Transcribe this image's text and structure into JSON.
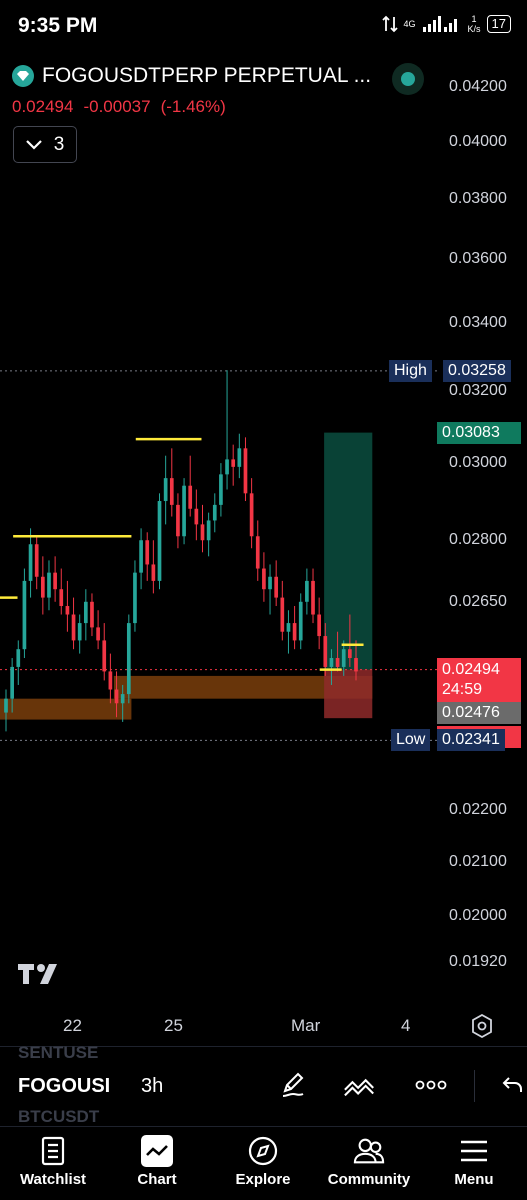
{
  "status": {
    "time": "9:35 PM",
    "network": "4G",
    "speed_value": "1",
    "speed_unit": "K/s",
    "battery": "17"
  },
  "header": {
    "symbol": "FOGOUSDTPERP PERPETUAL ...",
    "last_price": "0.02494",
    "change": "-0.00037",
    "change_pct": "(-1.46%)",
    "collapsed_count": "3"
  },
  "colors": {
    "bull": "#26a69a",
    "bear": "#f23645",
    "level_line": "#ffeb3b",
    "demand_zone": "#7a3e0c",
    "target_zone": "#0b4d3f",
    "stop_zone": "#8f2a2a",
    "high_low_tag": "#1a2f5a",
    "brand": "#26a69a"
  },
  "chart_data": {
    "type": "candlestick",
    "y_axis": {
      "ticks": [
        "0.04200",
        "0.04000",
        "0.03800",
        "0.03600",
        "0.03400",
        "0.03200",
        "0.03000",
        "0.02800",
        "0.02650",
        "0.02200",
        "0.02100",
        "0.02000",
        "0.01920"
      ],
      "scale": "log"
    },
    "x_axis": {
      "ticks": [
        "22",
        "25",
        "Mar",
        "4"
      ]
    },
    "high": {
      "label": "High",
      "value": "0.03258"
    },
    "low": {
      "label": "Low",
      "value": "0.02341"
    },
    "target_price": "0.03083",
    "current_price": "0.02494",
    "countdown": "24:59",
    "entry_price": "0.02476",
    "stop_price": "0.02388",
    "candles": [
      [
        0.024,
        0.0245,
        0.0236,
        0.0243
      ],
      [
        0.0243,
        0.0252,
        0.024,
        0.025
      ],
      [
        0.025,
        0.0256,
        0.0246,
        0.0254
      ],
      [
        0.0254,
        0.0273,
        0.0252,
        0.027
      ],
      [
        0.027,
        0.0283,
        0.0266,
        0.0279
      ],
      [
        0.0279,
        0.0281,
        0.0268,
        0.0271
      ],
      [
        0.0271,
        0.0276,
        0.0262,
        0.0266
      ],
      [
        0.0266,
        0.0275,
        0.0263,
        0.0272
      ],
      [
        0.0272,
        0.0276,
        0.0265,
        0.0268
      ],
      [
        0.0268,
        0.0273,
        0.0262,
        0.0264
      ],
      [
        0.0264,
        0.027,
        0.0258,
        0.0262
      ],
      [
        0.0262,
        0.0266,
        0.0254,
        0.0256
      ],
      [
        0.0256,
        0.0262,
        0.0253,
        0.026
      ],
      [
        0.026,
        0.0268,
        0.0256,
        0.0265
      ],
      [
        0.0265,
        0.0267,
        0.0257,
        0.0259
      ],
      [
        0.0259,
        0.0263,
        0.0254,
        0.0256
      ],
      [
        0.0256,
        0.026,
        0.0247,
        0.0249
      ],
      [
        0.0249,
        0.0253,
        0.0242,
        0.0245
      ],
      [
        0.0245,
        0.0249,
        0.0239,
        0.0242
      ],
      [
        0.0242,
        0.0246,
        0.0238,
        0.0244
      ],
      [
        0.0244,
        0.0262,
        0.0242,
        0.026
      ],
      [
        0.026,
        0.0275,
        0.0258,
        0.0272
      ],
      [
        0.0272,
        0.0283,
        0.0268,
        0.028
      ],
      [
        0.028,
        0.0282,
        0.027,
        0.0274
      ],
      [
        0.0274,
        0.028,
        0.0267,
        0.027
      ],
      [
        0.027,
        0.0292,
        0.0268,
        0.029
      ],
      [
        0.029,
        0.0302,
        0.0284,
        0.0296
      ],
      [
        0.0296,
        0.0304,
        0.0286,
        0.0289
      ],
      [
        0.0289,
        0.0292,
        0.0278,
        0.0281
      ],
      [
        0.0281,
        0.0296,
        0.0279,
        0.0294
      ],
      [
        0.0294,
        0.0302,
        0.0286,
        0.0288
      ],
      [
        0.0288,
        0.0293,
        0.028,
        0.0284
      ],
      [
        0.0284,
        0.0289,
        0.0277,
        0.028
      ],
      [
        0.028,
        0.0287,
        0.0276,
        0.0285
      ],
      [
        0.0285,
        0.0292,
        0.0282,
        0.0289
      ],
      [
        0.0289,
        0.03,
        0.0286,
        0.0297
      ],
      [
        0.0297,
        0.0326,
        0.0293,
        0.0301
      ],
      [
        0.0301,
        0.0305,
        0.0294,
        0.0299
      ],
      [
        0.0299,
        0.0308,
        0.0296,
        0.0304
      ],
      [
        0.0304,
        0.0307,
        0.029,
        0.0292
      ],
      [
        0.0292,
        0.0296,
        0.0278,
        0.0281
      ],
      [
        0.0281,
        0.0285,
        0.027,
        0.0273
      ],
      [
        0.0273,
        0.0277,
        0.0265,
        0.0268
      ],
      [
        0.0268,
        0.0274,
        0.0262,
        0.0271
      ],
      [
        0.0271,
        0.0275,
        0.0264,
        0.0266
      ],
      [
        0.0266,
        0.027,
        0.0256,
        0.0258
      ],
      [
        0.0258,
        0.0263,
        0.0253,
        0.026
      ],
      [
        0.026,
        0.0264,
        0.0254,
        0.0256
      ],
      [
        0.0256,
        0.0267,
        0.0254,
        0.0265
      ],
      [
        0.0265,
        0.0273,
        0.0262,
        0.027
      ],
      [
        0.027,
        0.0273,
        0.026,
        0.0262
      ],
      [
        0.0262,
        0.0266,
        0.0254,
        0.0257
      ],
      [
        0.0257,
        0.026,
        0.0248,
        0.025
      ],
      [
        0.025,
        0.0254,
        0.0246,
        0.0252
      ],
      [
        0.0252,
        0.0258,
        0.0249,
        0.025
      ],
      [
        0.025,
        0.0256,
        0.0248,
        0.0254
      ],
      [
        0.0254,
        0.0262,
        0.025,
        0.0252
      ],
      [
        0.0252,
        0.0256,
        0.0247,
        0.0249
      ]
    ],
    "levels": [
      {
        "price": 0.0281,
        "from": 0.03,
        "to": 0.3,
        "color": "level_line"
      },
      {
        "price": 0.03065,
        "from": 0.31,
        "to": 0.46,
        "color": "level_line"
      },
      {
        "price": 0.0266,
        "from": 0.0,
        "to": 0.04,
        "color": "level_line"
      },
      {
        "price": 0.0255,
        "from": 0.78,
        "to": 0.83,
        "color": "level_line"
      },
      {
        "price": 0.02494,
        "from": 0.73,
        "to": 0.78,
        "color": "level_line"
      }
    ],
    "zones": [
      {
        "top": 0.0243,
        "bottom": 0.02385,
        "from": 0.0,
        "to": 0.3,
        "color": "demand_zone"
      },
      {
        "top": 0.0248,
        "bottom": 0.0243,
        "from": 0.26,
        "to": 0.85,
        "color": "demand_zone"
      },
      {
        "top": 0.03083,
        "bottom": 0.02494,
        "from": 0.74,
        "to": 0.85,
        "color": "target_zone"
      },
      {
        "top": 0.02494,
        "bottom": 0.02388,
        "from": 0.74,
        "to": 0.85,
        "color": "stop_zone"
      }
    ]
  },
  "toolbar": {
    "ghost_top": "SENTUSE",
    "ticker": "FOGOUSI",
    "ghost_bottom": "BTCUSDT",
    "interval": "3h"
  },
  "nav": [
    {
      "label": "Watchlist",
      "icon": "watchlist-icon"
    },
    {
      "label": "Chart",
      "icon": "chart-icon",
      "active": true
    },
    {
      "label": "Explore",
      "icon": "compass-icon"
    },
    {
      "label": "Community",
      "icon": "community-icon"
    },
    {
      "label": "Menu",
      "icon": "menu-icon"
    }
  ]
}
